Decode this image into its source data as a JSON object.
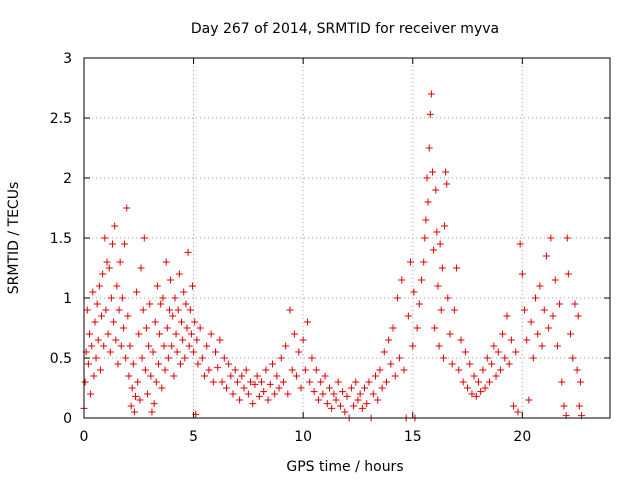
{
  "chart_data": {
    "type": "scatter",
    "title": "Day 267 of 2014, SRMTID for receiver myva",
    "xlabel": "GPS time / hours",
    "ylabel": "SRMTID / TECUs",
    "xlim": [
      0,
      24
    ],
    "ylim": [
      0,
      3
    ],
    "xticks": [
      0,
      5,
      10,
      15,
      20
    ],
    "xtick_labels": [
      "0",
      "5",
      "10",
      "15",
      "20"
    ],
    "yticks": [
      0,
      0.5,
      1,
      1.5,
      2,
      2.5,
      3
    ],
    "ytick_labels": [
      "0",
      "0.5",
      "1",
      "1.5",
      "2",
      "2.5",
      "3"
    ],
    "grid": true,
    "marker": "+",
    "series": [
      {
        "name": "SRMTID",
        "color": "#e00000",
        "points": [
          [
            0.0,
            0.08
          ],
          [
            0.05,
            0.3
          ],
          [
            0.1,
            0.55
          ],
          [
            0.15,
            0.9
          ],
          [
            0.2,
            0.45
          ],
          [
            0.25,
            0.7
          ],
          [
            0.3,
            0.2
          ],
          [
            0.35,
            0.6
          ],
          [
            0.4,
            1.05
          ],
          [
            0.45,
            0.35
          ],
          [
            0.5,
            0.8
          ],
          [
            0.55,
            0.5
          ],
          [
            0.6,
            0.95
          ],
          [
            0.65,
            0.65
          ],
          [
            0.7,
            1.1
          ],
          [
            0.75,
            0.4
          ],
          [
            0.8,
            0.85
          ],
          [
            0.85,
            1.2
          ],
          [
            0.9,
            0.6
          ],
          [
            0.95,
            1.5
          ],
          [
            1.0,
            0.9
          ],
          [
            1.05,
            1.3
          ],
          [
            1.1,
            0.7
          ],
          [
            1.15,
            1.25
          ],
          [
            1.2,
            0.55
          ],
          [
            1.25,
            1.0
          ],
          [
            1.3,
            1.45
          ],
          [
            1.35,
            0.8
          ],
          [
            1.4,
            1.6
          ],
          [
            1.45,
            0.65
          ],
          [
            1.5,
            1.1
          ],
          [
            1.55,
            0.45
          ],
          [
            1.6,
            0.9
          ],
          [
            1.65,
            1.3
          ],
          [
            1.7,
            0.6
          ],
          [
            1.75,
            1.0
          ],
          [
            1.8,
            0.75
          ],
          [
            1.85,
            1.45
          ],
          [
            1.9,
            0.5
          ],
          [
            1.95,
            1.75
          ],
          [
            2.0,
            0.85
          ],
          [
            2.05,
            0.35
          ],
          [
            2.1,
            0.6
          ],
          [
            2.15,
            0.1
          ],
          [
            2.2,
            0.25
          ],
          [
            2.25,
            0.45
          ],
          [
            2.3,
            0.05
          ],
          [
            2.35,
            0.18
          ],
          [
            2.4,
            1.05
          ],
          [
            2.45,
            0.3
          ],
          [
            2.5,
            0.7
          ],
          [
            2.55,
            0.15
          ],
          [
            2.6,
            1.25
          ],
          [
            2.65,
            0.5
          ],
          [
            2.7,
            0.9
          ],
          [
            2.75,
            1.5
          ],
          [
            2.8,
            0.4
          ],
          [
            2.85,
            0.75
          ],
          [
            2.9,
            0.2
          ],
          [
            2.95,
            0.6
          ],
          [
            3.0,
            0.95
          ],
          [
            3.05,
            0.35
          ],
          [
            3.1,
            0.05
          ],
          [
            3.15,
            0.55
          ],
          [
            3.2,
            0.12
          ],
          [
            3.25,
            0.8
          ],
          [
            3.3,
            0.3
          ],
          [
            3.35,
            1.1
          ],
          [
            3.4,
            0.45
          ],
          [
            3.45,
            0.7
          ],
          [
            3.5,
            0.95
          ],
          [
            3.55,
            0.25
          ],
          [
            3.6,
            1.0
          ],
          [
            3.65,
            0.6
          ],
          [
            3.7,
            0.4
          ],
          [
            3.75,
            1.3
          ],
          [
            3.8,
            0.75
          ],
          [
            3.85,
            0.5
          ],
          [
            3.9,
            0.9
          ],
          [
            3.95,
            1.15
          ],
          [
            4.0,
            0.6
          ],
          [
            4.05,
            0.85
          ],
          [
            4.1,
            0.35
          ],
          [
            4.15,
            1.0
          ],
          [
            4.2,
            0.7
          ],
          [
            4.25,
            0.55
          ],
          [
            4.3,
            0.9
          ],
          [
            4.35,
            1.2
          ],
          [
            4.4,
            0.45
          ],
          [
            4.45,
            0.8
          ],
          [
            4.5,
            0.65
          ],
          [
            4.55,
            1.05
          ],
          [
            4.6,
            0.5
          ],
          [
            4.65,
            0.95
          ],
          [
            4.7,
            0.75
          ],
          [
            4.75,
            1.38
          ],
          [
            4.8,
            0.6
          ],
          [
            4.85,
            0.9
          ],
          [
            4.9,
            0.7
          ],
          [
            4.95,
            1.1
          ],
          [
            5.0,
            0.55
          ],
          [
            5.05,
            0.8
          ],
          [
            5.1,
            0.03
          ],
          [
            5.15,
            0.65
          ],
          [
            5.2,
            0.45
          ],
          [
            5.3,
            0.75
          ],
          [
            5.4,
            0.5
          ],
          [
            5.5,
            0.35
          ],
          [
            5.6,
            0.6
          ],
          [
            5.7,
            0.4
          ],
          [
            5.8,
            0.7
          ],
          [
            5.9,
            0.3
          ],
          [
            6.0,
            0.55
          ],
          [
            6.1,
            0.42
          ],
          [
            6.2,
            0.65
          ],
          [
            6.3,
            0.3
          ],
          [
            6.4,
            0.5
          ],
          [
            6.5,
            0.25
          ],
          [
            6.6,
            0.45
          ],
          [
            6.7,
            0.35
          ],
          [
            6.8,
            0.2
          ],
          [
            6.9,
            0.4
          ],
          [
            7.0,
            0.3
          ],
          [
            7.1,
            0.15
          ],
          [
            7.2,
            0.35
          ],
          [
            7.3,
            0.25
          ],
          [
            7.4,
            0.4
          ],
          [
            7.5,
            0.2
          ],
          [
            7.6,
            0.3
          ],
          [
            7.7,
            0.12
          ],
          [
            7.8,
            0.28
          ],
          [
            7.9,
            0.35
          ],
          [
            8.0,
            0.18
          ],
          [
            8.1,
            0.3
          ],
          [
            8.2,
            0.22
          ],
          [
            8.3,
            0.4
          ],
          [
            8.4,
            0.15
          ],
          [
            8.5,
            0.28
          ],
          [
            8.6,
            0.45
          ],
          [
            8.7,
            0.2
          ],
          [
            8.8,
            0.35
          ],
          [
            8.9,
            0.25
          ],
          [
            9.0,
            0.5
          ],
          [
            9.1,
            0.3
          ],
          [
            9.2,
            0.6
          ],
          [
            9.3,
            0.2
          ],
          [
            9.4,
            0.9
          ],
          [
            9.5,
            0.4
          ],
          [
            9.6,
            0.7
          ],
          [
            9.7,
            0.35
          ],
          [
            9.8,
            0.55
          ],
          [
            9.9,
            0.25
          ],
          [
            10.0,
            0.65
          ],
          [
            10.1,
            0.4
          ],
          [
            10.2,
            0.8
          ],
          [
            10.3,
            0.3
          ],
          [
            10.4,
            0.5
          ],
          [
            10.5,
            0.22
          ],
          [
            10.6,
            0.4
          ],
          [
            10.7,
            0.15
          ],
          [
            10.8,
            0.3
          ],
          [
            10.9,
            0.2
          ],
          [
            11.0,
            0.35
          ],
          [
            11.1,
            0.12
          ],
          [
            11.2,
            0.25
          ],
          [
            11.3,
            0.08
          ],
          [
            11.4,
            0.2
          ],
          [
            11.5,
            0.15
          ],
          [
            11.6,
            0.3
          ],
          [
            11.7,
            0.1
          ],
          [
            11.8,
            0.22
          ],
          [
            11.9,
            0.05
          ],
          [
            12.0,
            0.18
          ],
          [
            12.1,
            0.0
          ],
          [
            12.2,
            0.25
          ],
          [
            12.3,
            0.1
          ],
          [
            12.4,
            0.3
          ],
          [
            12.5,
            0.15
          ],
          [
            12.6,
            0.2
          ],
          [
            12.7,
            0.08
          ],
          [
            12.8,
            0.25
          ],
          [
            12.9,
            0.12
          ],
          [
            13.0,
            0.3
          ],
          [
            13.1,
            0.0
          ],
          [
            13.2,
            0.2
          ],
          [
            13.3,
            0.35
          ],
          [
            13.4,
            0.15
          ],
          [
            13.5,
            0.4
          ],
          [
            13.6,
            0.25
          ],
          [
            13.7,
            0.55
          ],
          [
            13.8,
            0.3
          ],
          [
            13.9,
            0.65
          ],
          [
            14.0,
            0.45
          ],
          [
            14.1,
            0.75
          ],
          [
            14.2,
            0.35
          ],
          [
            14.3,
            1.0
          ],
          [
            14.4,
            0.5
          ],
          [
            14.5,
            1.15
          ],
          [
            14.6,
            0.4
          ],
          [
            14.7,
            0.0
          ],
          [
            14.8,
            0.85
          ],
          [
            14.9,
            1.3
          ],
          [
            15.0,
            0.6
          ],
          [
            15.05,
            1.05
          ],
          [
            15.1,
            0.0
          ],
          [
            15.2,
            0.75
          ],
          [
            15.3,
            0.95
          ],
          [
            15.4,
            1.15
          ],
          [
            15.5,
            1.3
          ],
          [
            15.55,
            1.5
          ],
          [
            15.6,
            1.65
          ],
          [
            15.65,
            2.0
          ],
          [
            15.7,
            1.8
          ],
          [
            15.75,
            2.25
          ],
          [
            15.8,
            2.53
          ],
          [
            15.85,
            2.7
          ],
          [
            15.9,
            2.05
          ],
          [
            15.95,
            1.4
          ],
          [
            16.0,
            0.75
          ],
          [
            16.05,
            1.9
          ],
          [
            16.1,
            1.55
          ],
          [
            16.15,
            1.1
          ],
          [
            16.2,
            0.6
          ],
          [
            16.25,
            1.45
          ],
          [
            16.3,
            0.9
          ],
          [
            16.35,
            1.25
          ],
          [
            16.4,
            0.5
          ],
          [
            16.45,
            1.6
          ],
          [
            16.5,
            2.05
          ],
          [
            16.55,
            1.95
          ],
          [
            16.6,
            1.0
          ],
          [
            16.7,
            0.7
          ],
          [
            16.8,
            0.45
          ],
          [
            16.9,
            0.9
          ],
          [
            17.0,
            1.25
          ],
          [
            17.1,
            0.4
          ],
          [
            17.2,
            0.65
          ],
          [
            17.3,
            0.3
          ],
          [
            17.4,
            0.55
          ],
          [
            17.5,
            0.25
          ],
          [
            17.6,
            0.45
          ],
          [
            17.7,
            0.2
          ],
          [
            17.8,
            0.35
          ],
          [
            17.9,
            0.18
          ],
          [
            18.0,
            0.3
          ],
          [
            18.1,
            0.22
          ],
          [
            18.2,
            0.4
          ],
          [
            18.3,
            0.25
          ],
          [
            18.4,
            0.5
          ],
          [
            18.5,
            0.3
          ],
          [
            18.6,
            0.45
          ],
          [
            18.7,
            0.6
          ],
          [
            18.8,
            0.35
          ],
          [
            18.9,
            0.55
          ],
          [
            19.0,
            0.4
          ],
          [
            19.1,
            0.7
          ],
          [
            19.2,
            0.5
          ],
          [
            19.3,
            0.85
          ],
          [
            19.4,
            0.45
          ],
          [
            19.5,
            0.65
          ],
          [
            19.6,
            0.1
          ],
          [
            19.7,
            0.55
          ],
          [
            19.8,
            0.05
          ],
          [
            19.9,
            1.45
          ],
          [
            20.0,
            1.2
          ],
          [
            20.1,
            0.9
          ],
          [
            20.2,
            0.65
          ],
          [
            20.3,
            0.15
          ],
          [
            20.4,
            0.8
          ],
          [
            20.5,
            0.5
          ],
          [
            20.6,
            1.0
          ],
          [
            20.7,
            0.7
          ],
          [
            20.8,
            1.1
          ],
          [
            20.9,
            0.6
          ],
          [
            21.0,
            0.9
          ],
          [
            21.1,
            1.35
          ],
          [
            21.2,
            0.75
          ],
          [
            21.3,
            1.5
          ],
          [
            21.4,
            0.85
          ],
          [
            21.5,
            1.15
          ],
          [
            21.6,
            0.6
          ],
          [
            21.7,
            0.95
          ],
          [
            21.8,
            0.3
          ],
          [
            21.9,
            0.1
          ],
          [
            22.0,
            0.02
          ],
          [
            22.05,
            1.5
          ],
          [
            22.1,
            1.2
          ],
          [
            22.2,
            0.7
          ],
          [
            22.3,
            0.5
          ],
          [
            22.4,
            0.95
          ],
          [
            22.5,
            0.4
          ],
          [
            22.55,
            0.85
          ],
          [
            22.6,
            0.1
          ],
          [
            22.65,
            0.3
          ],
          [
            22.7,
            0.02
          ]
        ]
      }
    ]
  }
}
